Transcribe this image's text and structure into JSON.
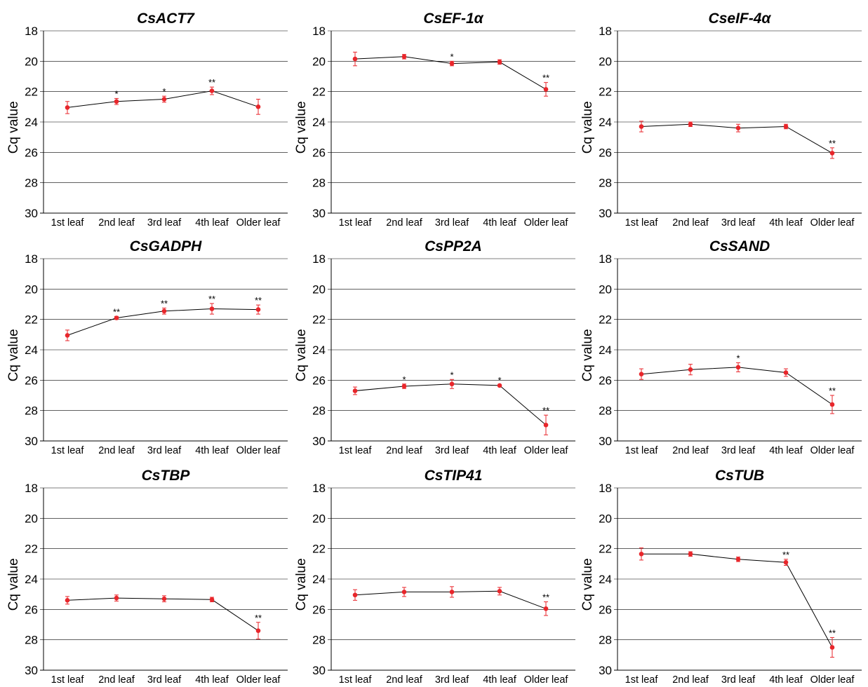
{
  "chart_data": [
    {
      "type": "line",
      "title": "CsACT7",
      "ylabel": "Cq value",
      "categories": [
        "1st leaf",
        "2nd leaf",
        "3rd leaf",
        "4th leaf",
        "Older leaf"
      ],
      "ylim": [
        30,
        18
      ],
      "yticks": [
        18,
        20,
        22,
        24,
        26,
        28,
        30
      ],
      "inverted_y": true,
      "grid": true,
      "values": [
        23.05,
        22.65,
        22.5,
        21.95,
        23.0
      ],
      "errors": [
        0.4,
        0.2,
        0.2,
        0.25,
        0.5
      ],
      "significance": [
        "",
        "*",
        "*",
        "**",
        ""
      ]
    },
    {
      "type": "line",
      "title": "CsEF-1α",
      "ylabel": "Cq value",
      "categories": [
        "1st leaf",
        "2nd leaf",
        "3rd leaf",
        "4th leaf",
        "Older leaf"
      ],
      "ylim": [
        30,
        18
      ],
      "yticks": [
        18,
        20,
        22,
        24,
        26,
        28,
        30
      ],
      "inverted_y": true,
      "grid": true,
      "values": [
        19.85,
        19.7,
        20.15,
        20.05,
        21.85
      ],
      "errors": [
        0.45,
        0.15,
        0.15,
        0.15,
        0.45
      ],
      "significance": [
        "",
        "",
        "*",
        "",
        "**"
      ]
    },
    {
      "type": "line",
      "title": "CseIF-4α",
      "ylabel": "Cq value",
      "categories": [
        "1st leaf",
        "2nd leaf",
        "3rd leaf",
        "4th leaf",
        "Older leaf"
      ],
      "ylim": [
        30,
        18
      ],
      "yticks": [
        18,
        20,
        22,
        24,
        26,
        28,
        30
      ],
      "inverted_y": true,
      "grid": true,
      "values": [
        24.3,
        24.15,
        24.4,
        24.3,
        26.05
      ],
      "errors": [
        0.35,
        0.15,
        0.25,
        0.15,
        0.35
      ],
      "significance": [
        "",
        "",
        "",
        "",
        "**"
      ]
    },
    {
      "type": "line",
      "title": "CsGADPH",
      "ylabel": "Cq value",
      "categories": [
        "1st leaf",
        "2nd leaf",
        "3rd leaf",
        "4th leaf",
        "Older leaf"
      ],
      "ylim": [
        30,
        18
      ],
      "yticks": [
        18,
        20,
        22,
        24,
        26,
        28,
        30
      ],
      "inverted_y": true,
      "grid": true,
      "values": [
        23.05,
        21.9,
        21.45,
        21.3,
        21.35
      ],
      "errors": [
        0.35,
        0.1,
        0.2,
        0.35,
        0.3
      ],
      "significance": [
        "",
        "**",
        "**",
        "**",
        "**"
      ]
    },
    {
      "type": "line",
      "title": "CsPP2A",
      "ylabel": "Cq value",
      "categories": [
        "1st leaf",
        "2nd leaf",
        "3rd leaf",
        "4th leaf",
        "Older leaf"
      ],
      "ylim": [
        30,
        18
      ],
      "yticks": [
        18,
        20,
        22,
        24,
        26,
        28,
        30
      ],
      "inverted_y": true,
      "grid": true,
      "values": [
        26.7,
        26.4,
        26.25,
        26.35,
        28.95
      ],
      "errors": [
        0.25,
        0.15,
        0.3,
        0.05,
        0.65
      ],
      "significance": [
        "",
        "*",
        "*",
        "*",
        "**"
      ]
    },
    {
      "type": "line",
      "title": "CsSAND",
      "ylabel": "Cq value",
      "categories": [
        "1st leaf",
        "2nd leaf",
        "3rd leaf",
        "4th leaf",
        "Older leaf"
      ],
      "ylim": [
        30,
        18
      ],
      "yticks": [
        18,
        20,
        22,
        24,
        26,
        28,
        30
      ],
      "inverted_y": true,
      "grid": true,
      "values": [
        25.6,
        25.3,
        25.15,
        25.5,
        27.6
      ],
      "errors": [
        0.35,
        0.35,
        0.3,
        0.25,
        0.6
      ],
      "significance": [
        "",
        "",
        "*",
        "",
        "**"
      ]
    },
    {
      "type": "line",
      "title": "CsTBP",
      "ylabel": "Cq value",
      "categories": [
        "1st leaf",
        "2nd leaf",
        "3rd leaf",
        "4th leaf",
        "Older leaf"
      ],
      "ylim": [
        30,
        18
      ],
      "yticks": [
        18,
        20,
        22,
        24,
        26,
        28,
        30
      ],
      "inverted_y": true,
      "grid": true,
      "values": [
        25.4,
        25.25,
        25.3,
        25.35,
        27.4
      ],
      "errors": [
        0.25,
        0.2,
        0.2,
        0.15,
        0.55
      ],
      "significance": [
        "",
        "",
        "",
        "",
        "**"
      ]
    },
    {
      "type": "line",
      "title": "CsTIP41",
      "ylabel": "Cq value",
      "categories": [
        "1st leaf",
        "2nd leaf",
        "3rd leaf",
        "4th leaf",
        "Older leaf"
      ],
      "ylim": [
        30,
        18
      ],
      "yticks": [
        18,
        20,
        22,
        24,
        26,
        28,
        30
      ],
      "inverted_y": true,
      "grid": true,
      "values": [
        25.05,
        24.85,
        24.85,
        24.8,
        25.95
      ],
      "errors": [
        0.35,
        0.3,
        0.35,
        0.25,
        0.45
      ],
      "significance": [
        "",
        "",
        "",
        "",
        "**"
      ]
    },
    {
      "type": "line",
      "title": "CsTUB",
      "ylabel": "Cq value",
      "categories": [
        "1st leaf",
        "2nd leaf",
        "3rd leaf",
        "4th leaf",
        "Older leaf"
      ],
      "ylim": [
        30,
        18
      ],
      "yticks": [
        18,
        20,
        22,
        24,
        26,
        28,
        30
      ],
      "inverted_y": true,
      "grid": true,
      "values": [
        22.35,
        22.35,
        22.7,
        22.9,
        28.5
      ],
      "errors": [
        0.4,
        0.15,
        0.15,
        0.2,
        0.65
      ],
      "significance": [
        "",
        "",
        "",
        "**",
        "**"
      ]
    }
  ],
  "colors": {
    "marker": "#e8262b",
    "line": "#000000",
    "grid": "#000000"
  }
}
